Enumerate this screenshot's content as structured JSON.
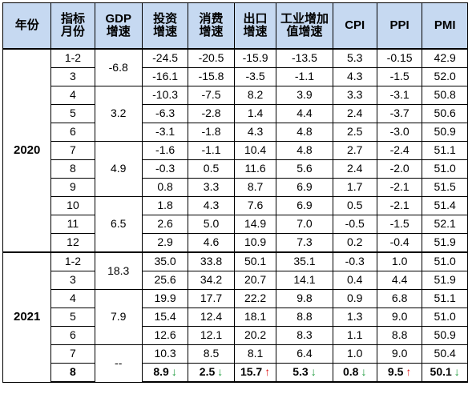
{
  "headers": {
    "year": "年份",
    "month": "指标\n月份",
    "gdp": "GDP\n增速",
    "invest": "投资\n增速",
    "consume": "消费\n增速",
    "export": "出口\n增速",
    "industry": "工业增加\n值增速",
    "cpi": "CPI",
    "ppi": "PPI",
    "pmi": "PMI"
  },
  "years": [
    "2020",
    "2021"
  ],
  "gdp_values": [
    "-6.8",
    "3.2",
    "4.9",
    "6.5",
    "18.3",
    "7.9",
    "--"
  ],
  "rows": [
    {
      "month": "1-2",
      "invest": "-24.5",
      "consume": "-20.5",
      "export": "-15.9",
      "industry": "-13.5",
      "cpi": "5.3",
      "ppi": "-0.15",
      "pmi": "42.9"
    },
    {
      "month": "3",
      "invest": "-16.1",
      "consume": "-15.8",
      "export": "-3.5",
      "industry": "-1.1",
      "cpi": "4.3",
      "ppi": "-1.5",
      "pmi": "52.0"
    },
    {
      "month": "4",
      "invest": "-10.3",
      "consume": "-7.5",
      "export": "8.2",
      "industry": "3.9",
      "cpi": "3.3",
      "ppi": "-3.1",
      "pmi": "50.8"
    },
    {
      "month": "5",
      "invest": "-6.3",
      "consume": "-2.8",
      "export": "1.4",
      "industry": "4.4",
      "cpi": "2.4",
      "ppi": "-3.7",
      "pmi": "50.6"
    },
    {
      "month": "6",
      "invest": "-3.1",
      "consume": "-1.8",
      "export": "4.3",
      "industry": "4.8",
      "cpi": "2.5",
      "ppi": "-3.0",
      "pmi": "50.9"
    },
    {
      "month": "7",
      "invest": "-1.6",
      "consume": "-1.1",
      "export": "10.4",
      "industry": "4.8",
      "cpi": "2.7",
      "ppi": "-2.4",
      "pmi": "51.1"
    },
    {
      "month": "8",
      "invest": "-0.3",
      "consume": "0.5",
      "export": "11.6",
      "industry": "5.6",
      "cpi": "2.4",
      "ppi": "-2.0",
      "pmi": "51.0"
    },
    {
      "month": "9",
      "invest": "0.8",
      "consume": "3.3",
      "export": "8.7",
      "industry": "6.9",
      "cpi": "1.7",
      "ppi": "-2.1",
      "pmi": "51.5"
    },
    {
      "month": "10",
      "invest": "1.8",
      "consume": "4.3",
      "export": "7.6",
      "industry": "6.9",
      "cpi": "0.5",
      "ppi": "-2.1",
      "pmi": "51.4"
    },
    {
      "month": "11",
      "invest": "2.6",
      "consume": "5.0",
      "export": "14.9",
      "industry": "7.0",
      "cpi": "-0.5",
      "ppi": "-1.5",
      "pmi": "52.1"
    },
    {
      "month": "12",
      "invest": "2.9",
      "consume": "4.6",
      "export": "10.9",
      "industry": "7.3",
      "cpi": "0.2",
      "ppi": "-0.4",
      "pmi": "51.9"
    },
    {
      "month": "1-2",
      "invest": "35.0",
      "consume": "33.8",
      "export": "50.1",
      "industry": "35.1",
      "cpi": "-0.3",
      "ppi": "1.0",
      "pmi": "51.0"
    },
    {
      "month": "3",
      "invest": "25.6",
      "consume": "34.2",
      "export": "20.7",
      "industry": "14.1",
      "cpi": "0.4",
      "ppi": "4.4",
      "pmi": "51.9"
    },
    {
      "month": "4",
      "invest": "19.9",
      "consume": "17.7",
      "export": "22.2",
      "industry": "9.8",
      "cpi": "0.9",
      "ppi": "6.8",
      "pmi": "51.1"
    },
    {
      "month": "5",
      "invest": "15.4",
      "consume": "12.4",
      "export": "18.1",
      "industry": "8.8",
      "cpi": "1.3",
      "ppi": "9.0",
      "pmi": "51.0"
    },
    {
      "month": "6",
      "invest": "12.6",
      "consume": "12.1",
      "export": "20.2",
      "industry": "8.3",
      "cpi": "1.1",
      "ppi": "8.8",
      "pmi": "50.9"
    },
    {
      "month": "7",
      "invest": "10.3",
      "consume": "8.5",
      "export": "8.1",
      "industry": "6.4",
      "cpi": "1.0",
      "ppi": "9.0",
      "pmi": "50.4"
    },
    {
      "month": "8",
      "invest": "8.9",
      "consume": "2.5",
      "export": "15.7",
      "industry": "5.3",
      "cpi": "0.8",
      "ppi": "9.5",
      "pmi": "50.1"
    }
  ],
  "latest_trends": {
    "invest": "↓",
    "consume": "↓",
    "export": "↑",
    "industry": "↓",
    "cpi": "↓",
    "ppi": "↑",
    "pmi": "↓"
  },
  "colors": {
    "header_bg": "#c6d9f1",
    "down": "#1a9a3a",
    "up": "#e01b1b"
  }
}
